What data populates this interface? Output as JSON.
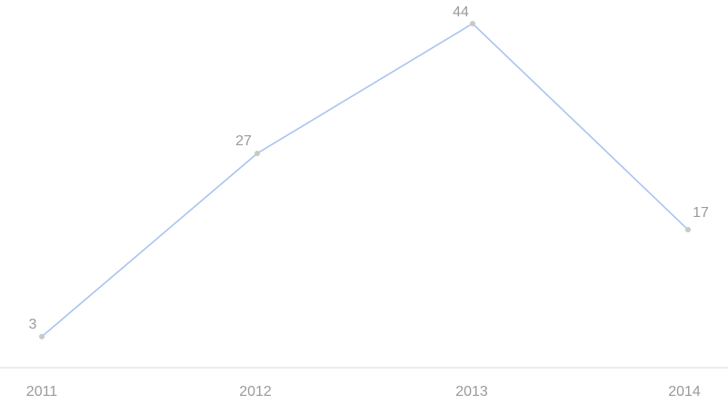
{
  "chart_data": {
    "type": "line",
    "categories": [
      "2011",
      "2012",
      "2013",
      "2014"
    ],
    "values": [
      3,
      27,
      44,
      17
    ],
    "data_labels": [
      "3",
      "27",
      "44",
      "17"
    ],
    "title": "",
    "xlabel": "",
    "ylabel": "",
    "ylim": [
      0,
      47
    ],
    "grid": false,
    "legend": "none"
  },
  "colors": {
    "line": "#a8c4f0",
    "point": "#c8c8c8",
    "text": "#9a9a9a",
    "axis": "#d9d9d9"
  }
}
